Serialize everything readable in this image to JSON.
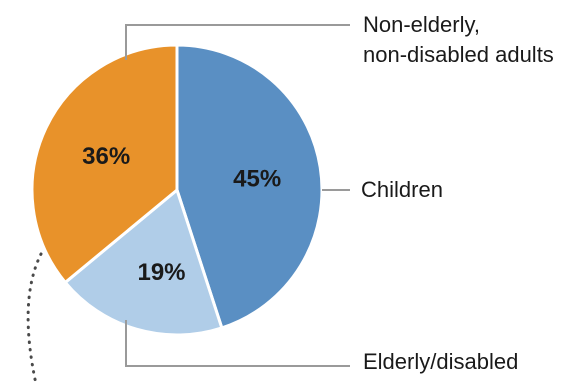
{
  "chart_data": {
    "type": "pie",
    "slices": [
      {
        "label": "Children",
        "value": 45,
        "display": "45%",
        "color": "#5a8fc3"
      },
      {
        "label": "Elderly/disabled",
        "value": 19,
        "display": "19%",
        "color": "#b0cde8"
      },
      {
        "label": "Non-elderly, non-disabled adults",
        "value": 36,
        "display": "36%",
        "color": "#e8922a"
      }
    ],
    "legend": {
      "children_label": "Children",
      "elderly_label": "Elderly/disabled",
      "adults_label_line1": "Non-elderly,",
      "adults_label_line2": "non-disabled adults"
    },
    "start_angle": "12 o'clock",
    "direction": "clockwise",
    "slice_border_color": "#ffffff",
    "leader_line_color": "#9a9a9a"
  }
}
